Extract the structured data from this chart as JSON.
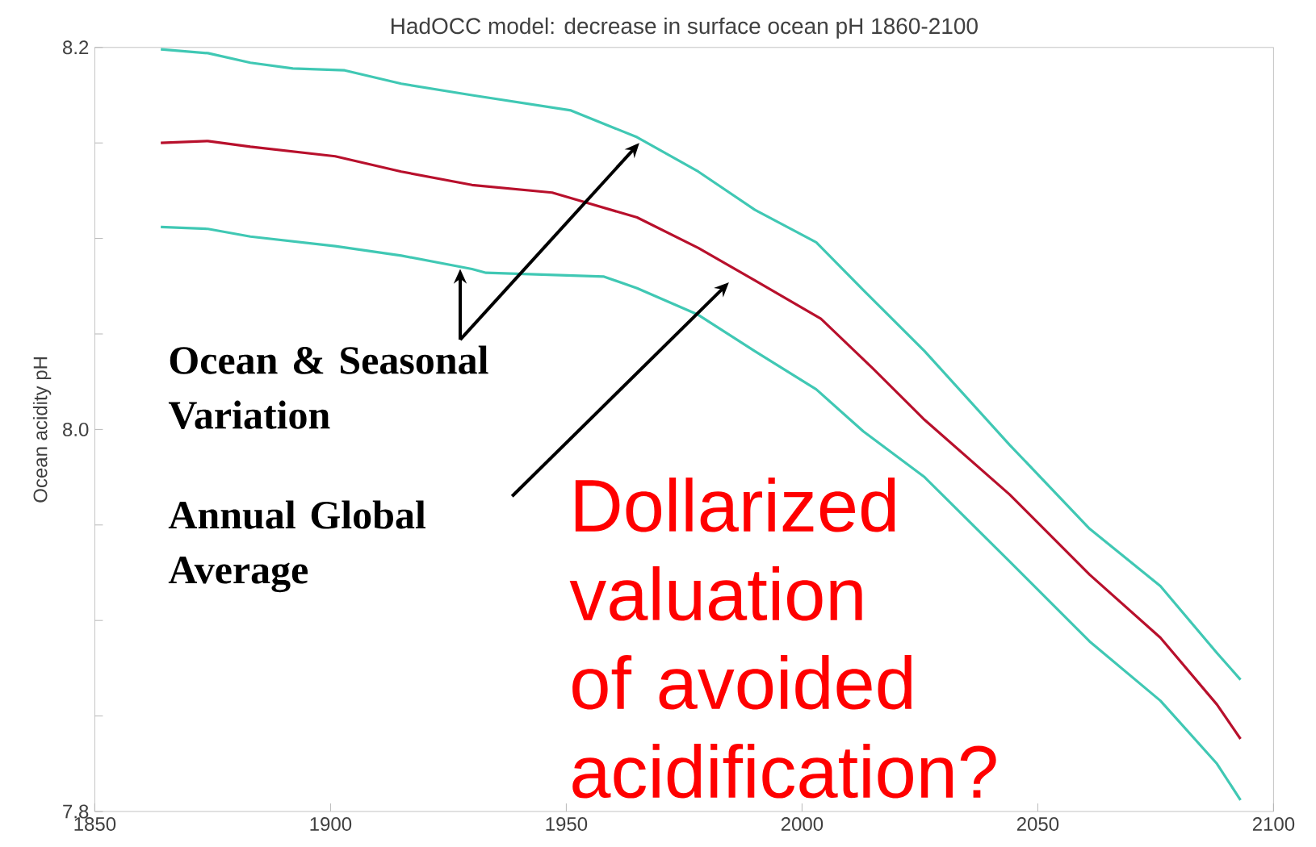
{
  "chart_data": {
    "type": "line",
    "title": "HadOCC model: decrease in surface ocean pH 1860-2100",
    "ylabel": "Ocean acidity pH",
    "xlim": [
      1850,
      2100
    ],
    "xticks": [
      1850,
      1900,
      1950,
      2000,
      2050,
      2100
    ],
    "ylim": [
      7.8,
      8.2
    ],
    "yticks": [
      7.8,
      {
        "value": 7.85,
        "label": null
      },
      {
        "value": 7.9,
        "label": null
      },
      {
        "value": 7.95,
        "label": null
      },
      {
        "value": 8.0,
        "label": "8.0"
      },
      {
        "value": 8.05,
        "label": null
      },
      {
        "value": 8.1,
        "label": null
      },
      {
        "value": 8.15,
        "label": null
      },
      8.2
    ],
    "series": [
      {
        "color": "#40c8b4",
        "x": [
          1864,
          1874,
          1883,
          1892,
          1903,
          1915,
          1930,
          1951,
          1965,
          1978,
          1990,
          2003,
          2013,
          2026,
          2044,
          2061,
          2076,
          2088,
          2093
        ],
        "values": [
          8.199,
          8.197,
          8.192,
          8.189,
          8.188,
          8.181,
          8.175,
          8.167,
          8.153,
          8.135,
          8.115,
          8.098,
          8.073,
          8.041,
          7.992,
          7.948,
          7.918,
          7.883,
          7.869
        ]
      },
      {
        "color": "#b8102c",
        "x": [
          1864,
          1874,
          1883,
          1901,
          1915,
          1930,
          1947,
          1965,
          1978,
          1990,
          2004,
          2015,
          2026,
          2044,
          2061,
          2076,
          2088,
          2093
        ],
        "values": [
          8.15,
          8.151,
          8.148,
          8.143,
          8.135,
          8.128,
          8.124,
          8.111,
          8.095,
          8.078,
          8.058,
          8.032,
          8.005,
          7.966,
          7.924,
          7.891,
          7.856,
          7.838
        ]
      },
      {
        "color": "#40c8b4",
        "x": [
          1864,
          1874,
          1883,
          1901,
          1915,
          1930,
          1933,
          1958,
          1965,
          1978,
          1990,
          2003,
          2013,
          2026,
          2044,
          2061,
          2076,
          2088,
          2093
        ],
        "values": [
          8.106,
          8.105,
          8.101,
          8.096,
          8.091,
          8.084,
          8.082,
          8.08,
          8.074,
          8.06,
          8.041,
          8.021,
          7.999,
          7.975,
          7.931,
          7.889,
          7.858,
          7.825,
          7.806
        ]
      }
    ],
    "annotations": [
      "Ocean & Seasonal Variation",
      "Annual Global Average",
      "Dollarized valuation of avoided acidification?"
    ]
  }
}
